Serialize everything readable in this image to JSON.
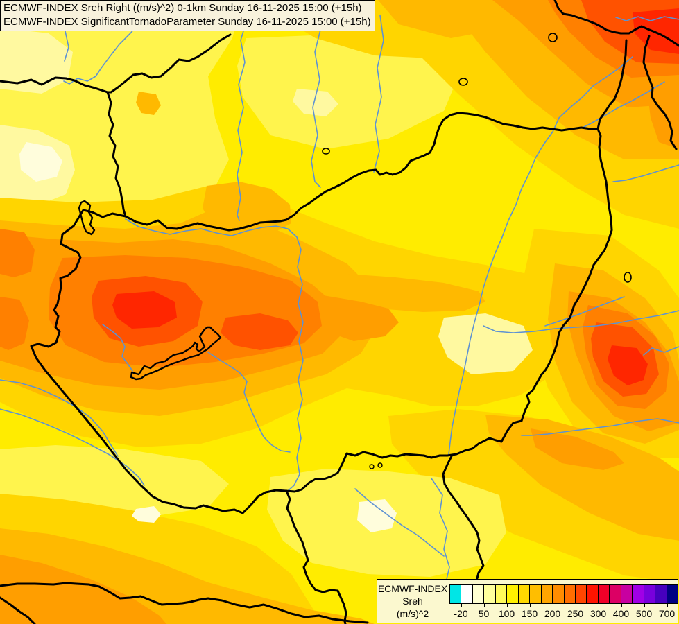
{
  "title": {
    "line1": "ECMWF-INDEX Sreh Right ((m/s)^2) 0-1km Sunday 16-11-2025 15:00 (+15h)",
    "line2": "ECMWF-INDEX SignificantTornadoParameter Sunday 16-11-2025 15:00 (+15h)",
    "bg": "#F8F2DC"
  },
  "legend": {
    "heading": "ECMWF-INDEX",
    "param": "Sreh",
    "units": "(m/s)^2",
    "bg": "#FBF8CF",
    "ticks": [
      "-20",
      "50",
      "100",
      "150",
      "200",
      "250",
      "300",
      "400",
      "500",
      "700"
    ],
    "cells": [
      "#00E6E6",
      "#FFFFFF",
      "#FFFFD2",
      "#FFFF9C",
      "#FFFA5A",
      "#FFF000",
      "#FFD800",
      "#FFBE00",
      "#FFA500",
      "#FF8C00",
      "#FF6E00",
      "#FF4600",
      "#FF1400",
      "#F00028",
      "#DC0064",
      "#C800A0",
      "#A000E6",
      "#7800DC",
      "#4600BE",
      "#000082"
    ]
  },
  "map": {
    "region": "Hungary and surrounding countries",
    "layers": {
      "filled_contours": "storm relative helicity shading",
      "borders": "country boundaries",
      "rivers": "river network",
      "lakes": [
        "Lake Balaton",
        "Lake Neusiedl"
      ]
    },
    "palette": {
      "base": "#FFEC00",
      "light": "#FFF44D",
      "pale": "#FFF9A0",
      "cream": "#FFFDDC",
      "gold": "#FFD500",
      "amber": "#FFB900",
      "orange": "#FF9E00",
      "deep_orange": "#FF8000",
      "red_orange": "#FF5200",
      "red": "#FF2600",
      "border": "#000000",
      "river": "#5E92D2"
    }
  }
}
